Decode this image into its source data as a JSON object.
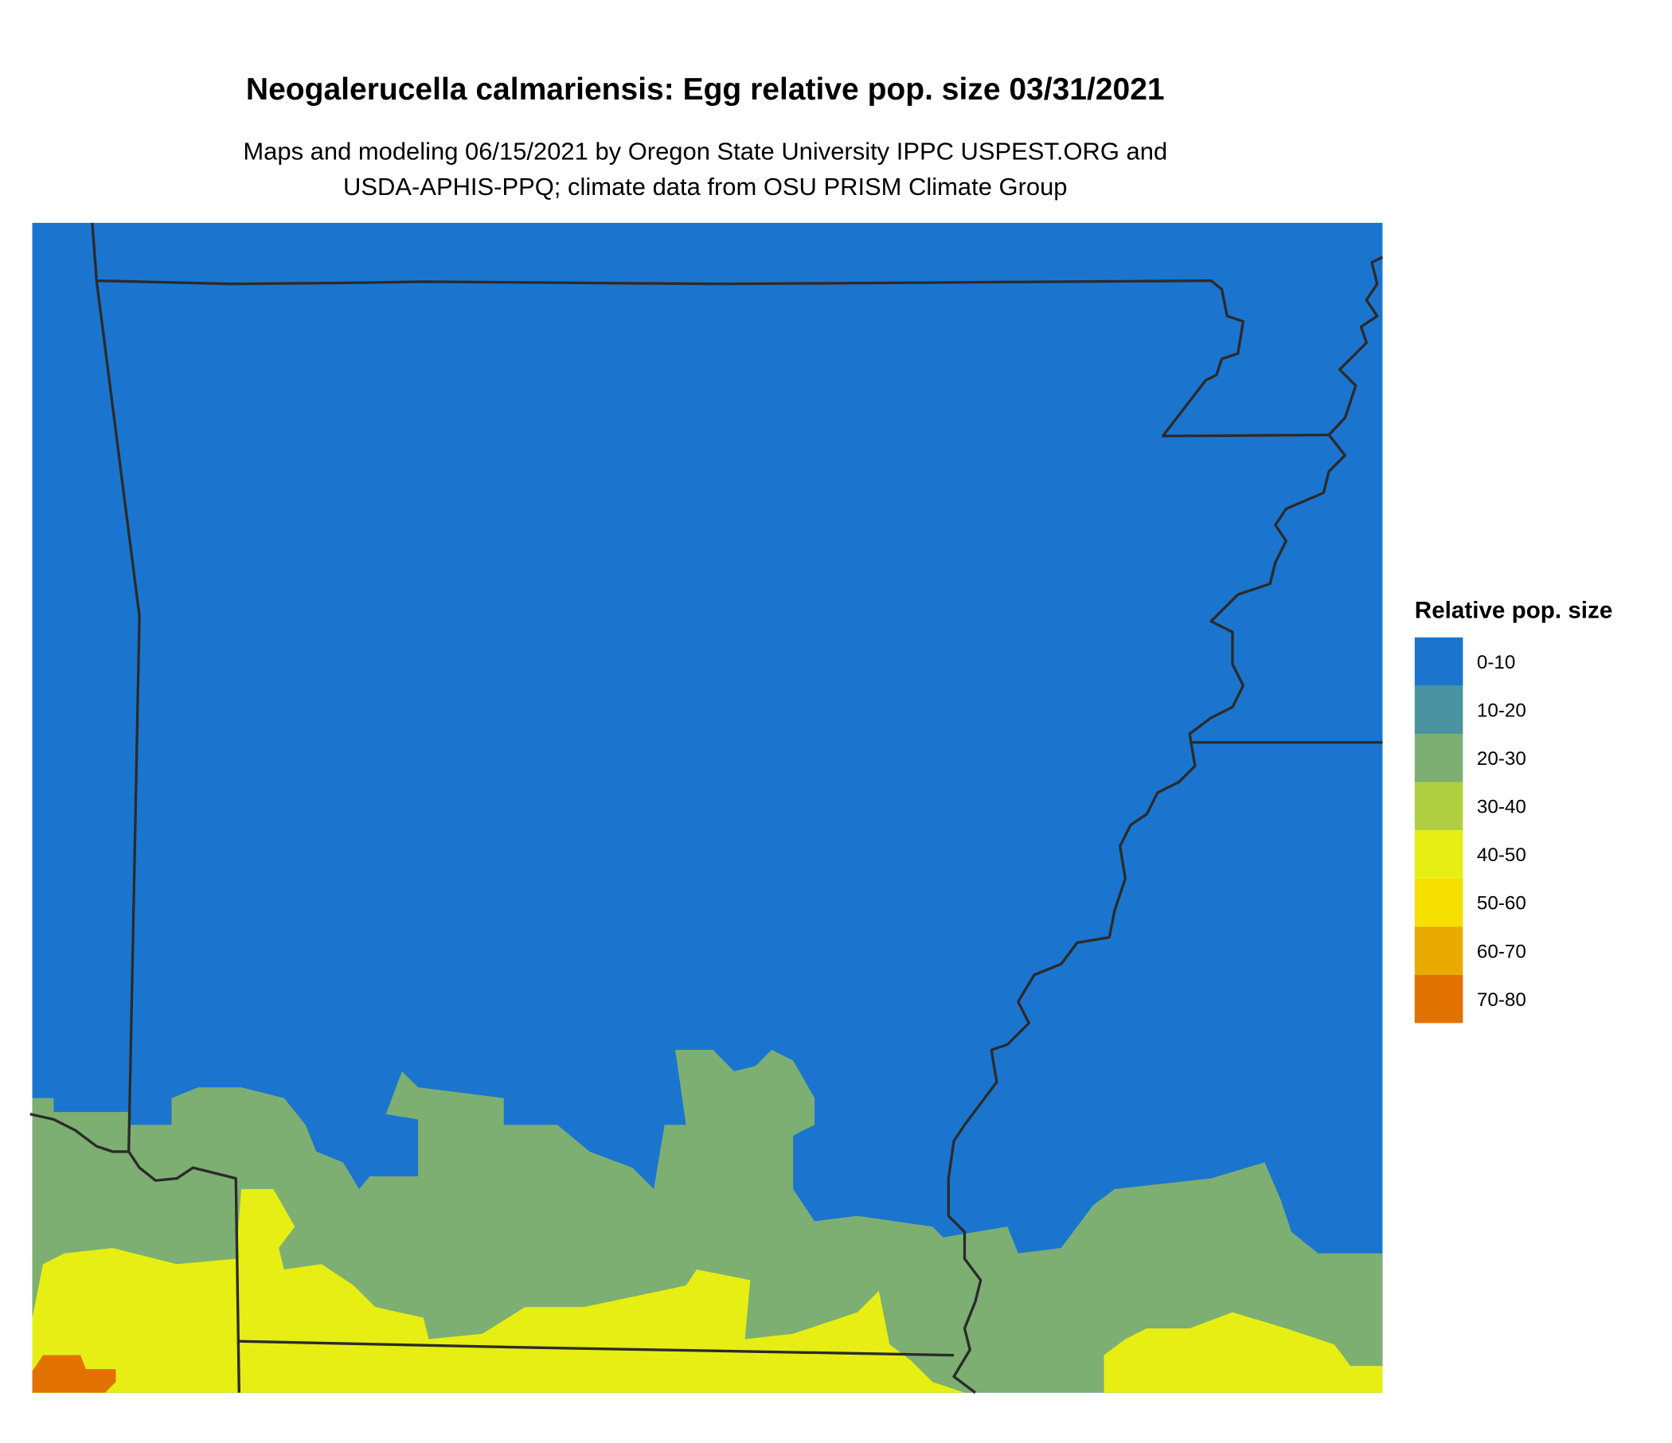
{
  "title": "Neogalerucella calmariensis: Egg relative pop. size 03/31/2021",
  "subtitle": [
    "Maps and modeling 06/15/2021 by Oregon State University IPPC USPEST.ORG and",
    "USDA-APHIS-PPQ; climate data from OSU PRISM Climate Group"
  ],
  "legend": {
    "title": "Relative pop. size",
    "items": [
      {
        "label": "0-10",
        "color": "#1b75cf"
      },
      {
        "label": "10-20",
        "color": "#4a93a0"
      },
      {
        "label": "20-30",
        "color": "#7daf72"
      },
      {
        "label": "30-40",
        "color": "#b0cf40"
      },
      {
        "label": "40-50",
        "color": "#e6ee14"
      },
      {
        "label": "50-60",
        "color": "#f6e000"
      },
      {
        "label": "60-70",
        "color": "#eaab00"
      },
      {
        "label": "70-80",
        "color": "#e27200"
      }
    ]
  }
}
